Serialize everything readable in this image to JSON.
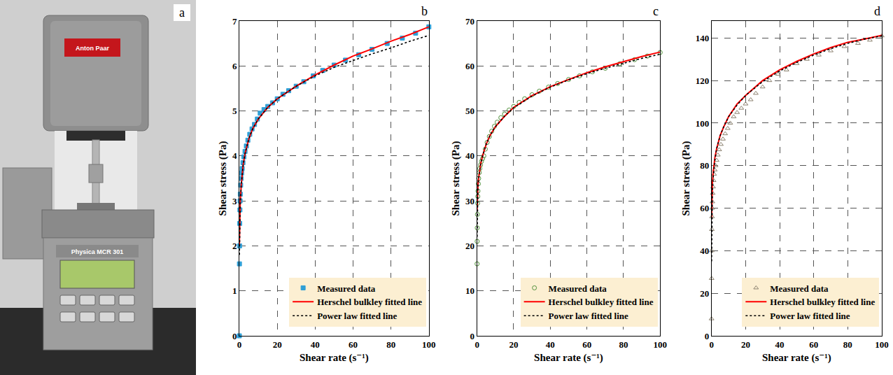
{
  "photo": {
    "label": "a",
    "texts": [
      "Anton Paar",
      "Physica MCR 301"
    ]
  },
  "chart_data": [
    {
      "type": "scatter",
      "title": "b",
      "x_label": "Shear rate (s⁻¹)",
      "y_label": "Shear stress (Pa)",
      "xlim": [
        0,
        100
      ],
      "xticks": [
        0,
        20,
        40,
        60,
        80,
        100
      ],
      "ylim": [
        0,
        7
      ],
      "yticks": [
        0,
        1,
        2,
        3,
        4,
        5,
        6,
        7
      ],
      "grid": true,
      "legend": "lower right",
      "series": [
        {
          "name": "Measured data",
          "type": "scatter",
          "marker": "square",
          "color": "#2f9fd6",
          "x": [
            0,
            0.05,
            0.1,
            0.2,
            0.3,
            0.4,
            0.5,
            0.7,
            0.9,
            1.2,
            1.5,
            1.9,
            2.4,
            3,
            3.7,
            4.5,
            5.5,
            6.7,
            8,
            9.5,
            11,
            13,
            15,
            17.5,
            20,
            23,
            26,
            30,
            34,
            39,
            44,
            50,
            56,
            63,
            70,
            78,
            86,
            93,
            100
          ],
          "values": [
            0,
            1.6,
            2.0,
            2.5,
            2.8,
            3.0,
            3.15,
            3.35,
            3.5,
            3.62,
            3.72,
            3.85,
            3.98,
            4.1,
            4.22,
            4.35,
            4.48,
            4.6,
            4.7,
            4.82,
            4.95,
            5.03,
            5.1,
            5.18,
            5.27,
            5.37,
            5.45,
            5.55,
            5.65,
            5.78,
            5.9,
            6.02,
            6.13,
            6.25,
            6.37,
            6.5,
            6.62,
            6.73,
            6.87
          ]
        },
        {
          "name": "Herschel bulkley fitted line",
          "type": "line",
          "line_style": "solid",
          "color": "#ff0000",
          "x": [
            0,
            0.2,
            0.5,
            1,
            2,
            3,
            5,
            7,
            10,
            15,
            20,
            30,
            40,
            50,
            60,
            70,
            80,
            90,
            100
          ],
          "values": [
            2.0,
            2.6,
            3.0,
            3.35,
            3.8,
            4.05,
            4.38,
            4.6,
            4.82,
            5.08,
            5.27,
            5.55,
            5.8,
            6.02,
            6.22,
            6.38,
            6.55,
            6.7,
            6.87
          ]
        },
        {
          "name": "Power law fitted line",
          "type": "line",
          "line_style": "dotted",
          "color": "#000000",
          "x": [
            0.05,
            0.2,
            0.5,
            1,
            2,
            3,
            5,
            7,
            10,
            15,
            20,
            30,
            40,
            50,
            60,
            70,
            80,
            90,
            100
          ],
          "values": [
            1.8,
            2.45,
            2.95,
            3.35,
            3.8,
            4.05,
            4.38,
            4.6,
            4.82,
            5.08,
            5.27,
            5.55,
            5.78,
            5.97,
            6.12,
            6.27,
            6.4,
            6.55,
            6.68
          ]
        }
      ]
    },
    {
      "type": "scatter",
      "title": "c",
      "x_label": "Shear rate (s⁻¹)",
      "y_label": "Shear stress (Pa)",
      "xlim": [
        0,
        100
      ],
      "xticks": [
        0,
        20,
        40,
        60,
        80,
        100
      ],
      "ylim": [
        0,
        70
      ],
      "yticks": [
        0,
        10,
        20,
        30,
        40,
        50,
        60,
        70
      ],
      "grid": true,
      "legend": "lower right",
      "series": [
        {
          "name": "Measured data",
          "type": "scatter",
          "marker": "circle-open",
          "color": "#4f8f3a",
          "x": [
            0,
            0.05,
            0.1,
            0.2,
            0.3,
            0.4,
            0.5,
            0.7,
            0.9,
            1.2,
            1.5,
            1.9,
            2.4,
            3,
            3.7,
            4.5,
            5.5,
            6.7,
            8,
            9.5,
            11,
            13,
            15,
            17.5,
            20,
            23,
            26,
            30,
            34,
            39,
            44,
            50,
            56,
            63,
            70,
            78,
            86,
            93,
            100
          ],
          "values": [
            16,
            21,
            24,
            27,
            29.5,
            31,
            32.2,
            33.8,
            35,
            36.3,
            37.2,
            38,
            38.8,
            39.4,
            40,
            41.5,
            43,
            44.3,
            45.5,
            46.6,
            47.5,
            48.5,
            49.3,
            50.2,
            51,
            51.9,
            52.7,
            53.6,
            54.4,
            55.3,
            56.1,
            57,
            57.8,
            58.7,
            59.5,
            60.5,
            61.4,
            62.2,
            63
          ]
        },
        {
          "name": "Herschel bulkley fitted line",
          "type": "line",
          "line_style": "solid",
          "color": "#ff0000",
          "x": [
            0,
            0.2,
            0.5,
            1,
            2,
            3,
            5,
            7,
            10,
            15,
            20,
            30,
            40,
            50,
            60,
            70,
            80,
            90,
            100
          ],
          "values": [
            28,
            31,
            33.5,
            35.5,
            38.3,
            40,
            42.6,
            44.5,
            46.5,
            48.8,
            50.8,
            53.4,
            55.4,
            57,
            58.5,
            59.8,
            61,
            62.1,
            63.1
          ]
        },
        {
          "name": "Power law fitted line",
          "type": "line",
          "line_style": "dotted",
          "color": "#000000",
          "x": [
            0.05,
            0.2,
            0.5,
            1,
            2,
            3,
            5,
            7,
            10,
            15,
            20,
            30,
            40,
            50,
            60,
            70,
            80,
            90,
            100
          ],
          "values": [
            22,
            29,
            33,
            35.5,
            38.3,
            40,
            42.6,
            44.5,
            46.5,
            48.8,
            50.7,
            53.3,
            55.3,
            56.9,
            58.3,
            59.5,
            60.6,
            61.7,
            62.6
          ]
        }
      ]
    },
    {
      "type": "scatter",
      "title": "d",
      "x_label": "Shear rate (s⁻¹)",
      "y_label": "Shear stress (Pa)",
      "xlim": [
        0,
        100
      ],
      "xticks": [
        0,
        20,
        40,
        60,
        80,
        100
      ],
      "ylim": [
        0,
        148
      ],
      "yticks": [
        0,
        20,
        40,
        60,
        80,
        100,
        120,
        140
      ],
      "grid": true,
      "legend": "lower right",
      "series": [
        {
          "name": "Measured data",
          "type": "scatter",
          "marker": "triangle-up-open",
          "color": "#8c8270",
          "x": [
            0,
            0.05,
            0.1,
            0.2,
            0.3,
            0.4,
            0.5,
            0.7,
            0.9,
            1.2,
            1.5,
            1.9,
            2.4,
            3,
            3.7,
            4.5,
            5.5,
            6.7,
            8,
            9.5,
            11,
            13,
            15,
            17.5,
            20,
            23,
            26,
            30,
            34,
            39,
            44,
            50,
            56,
            63,
            70,
            78,
            86,
            93,
            100
          ],
          "values": [
            8,
            27,
            40,
            50,
            56,
            60,
            63,
            67,
            70,
            73,
            76,
            78,
            80,
            82.5,
            85,
            87.5,
            90,
            92.5,
            95,
            97.5,
            100,
            103,
            105,
            107,
            109,
            111,
            114,
            117,
            120,
            123,
            125,
            128,
            130,
            132,
            134,
            136,
            137.5,
            139,
            141
          ]
        },
        {
          "name": "Herschel bulkley fitted line",
          "type": "line",
          "line_style": "solid",
          "color": "#ff0000",
          "x": [
            0,
            0.2,
            0.5,
            1,
            2,
            3,
            5,
            7,
            10,
            15,
            20,
            30,
            40,
            50,
            60,
            70,
            80,
            90,
            100
          ],
          "values": [
            55,
            66,
            72,
            77,
            84,
            88,
            94,
            98,
            103,
            109,
            113,
            120,
            125,
            129,
            132.5,
            135.5,
            138,
            139.5,
            141.3
          ]
        },
        {
          "name": "Power law fitted line",
          "type": "line",
          "line_style": "dotted",
          "color": "#000000",
          "x": [
            0.05,
            0.2,
            0.5,
            1,
            2,
            3,
            5,
            7,
            10,
            15,
            20,
            30,
            40,
            50,
            60,
            70,
            80,
            90,
            100
          ],
          "values": [
            35,
            58,
            68,
            75,
            83,
            88,
            94,
            98,
            103,
            108.5,
            113,
            119.5,
            124.5,
            128.5,
            132,
            135,
            137.5,
            139.5,
            141
          ]
        }
      ]
    }
  ]
}
